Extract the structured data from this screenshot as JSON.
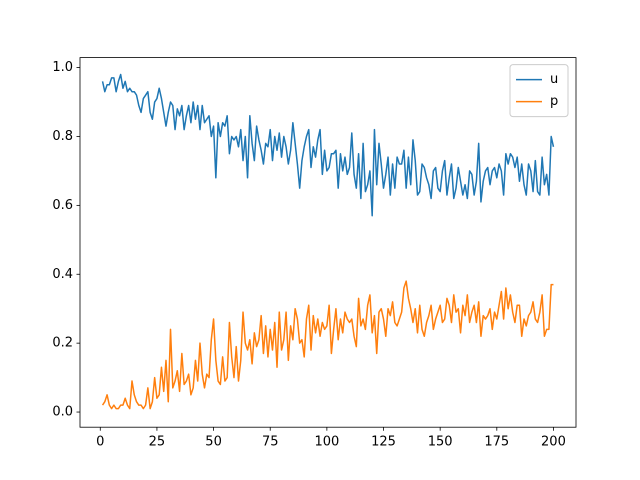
{
  "chart_data": {
    "type": "line",
    "x": [
      1,
      2,
      3,
      4,
      5,
      6,
      7,
      8,
      9,
      10,
      11,
      12,
      13,
      14,
      15,
      16,
      17,
      18,
      19,
      20,
      21,
      22,
      23,
      24,
      25,
      26,
      27,
      28,
      29,
      30,
      31,
      32,
      33,
      34,
      35,
      36,
      37,
      38,
      39,
      40,
      41,
      42,
      43,
      44,
      45,
      46,
      47,
      48,
      49,
      50,
      51,
      52,
      53,
      54,
      55,
      56,
      57,
      58,
      59,
      60,
      61,
      62,
      63,
      64,
      65,
      66,
      67,
      68,
      69,
      70,
      71,
      72,
      73,
      74,
      75,
      76,
      77,
      78,
      79,
      80,
      81,
      82,
      83,
      84,
      85,
      86,
      87,
      88,
      89,
      90,
      91,
      92,
      93,
      94,
      95,
      96,
      97,
      98,
      99,
      100,
      101,
      102,
      103,
      104,
      105,
      106,
      107,
      108,
      109,
      110,
      111,
      112,
      113,
      114,
      115,
      116,
      117,
      118,
      119,
      120,
      121,
      122,
      123,
      124,
      125,
      126,
      127,
      128,
      129,
      130,
      131,
      132,
      133,
      134,
      135,
      136,
      137,
      138,
      139,
      140,
      141,
      142,
      143,
      144,
      145,
      146,
      147,
      148,
      149,
      150,
      151,
      152,
      153,
      154,
      155,
      156,
      157,
      158,
      159,
      160,
      161,
      162,
      163,
      164,
      165,
      166,
      167,
      168,
      169,
      170,
      171,
      172,
      173,
      174,
      175,
      176,
      177,
      178,
      179,
      180,
      181,
      182,
      183,
      184,
      185,
      186,
      187,
      188,
      189,
      190,
      191,
      192,
      193,
      194,
      195,
      196,
      197,
      198,
      199,
      200
    ],
    "series": [
      {
        "name": "u",
        "color": "#1f77b4",
        "values": [
          0.96,
          0.93,
          0.95,
          0.95,
          0.97,
          0.97,
          0.93,
          0.96,
          0.98,
          0.94,
          0.96,
          0.93,
          0.94,
          0.93,
          0.93,
          0.92,
          0.89,
          0.87,
          0.91,
          0.92,
          0.93,
          0.87,
          0.85,
          0.9,
          0.91,
          0.94,
          0.91,
          0.87,
          0.83,
          0.87,
          0.9,
          0.89,
          0.82,
          0.88,
          0.86,
          0.89,
          0.82,
          0.86,
          0.89,
          0.84,
          0.9,
          0.85,
          0.89,
          0.82,
          0.89,
          0.84,
          0.85,
          0.86,
          0.8,
          0.83,
          0.68,
          0.84,
          0.8,
          0.84,
          0.83,
          0.86,
          0.75,
          0.8,
          0.79,
          0.8,
          0.77,
          0.82,
          0.73,
          0.8,
          0.68,
          0.86,
          0.78,
          0.73,
          0.83,
          0.79,
          0.76,
          0.72,
          0.78,
          0.77,
          0.82,
          0.73,
          0.8,
          0.76,
          0.81,
          0.74,
          0.8,
          0.77,
          0.72,
          0.76,
          0.84,
          0.78,
          0.72,
          0.65,
          0.73,
          0.77,
          0.8,
          0.82,
          0.71,
          0.77,
          0.74,
          0.79,
          0.82,
          0.69,
          0.76,
          0.7,
          0.71,
          0.75,
          0.75,
          0.76,
          0.65,
          0.75,
          0.7,
          0.74,
          0.69,
          0.71,
          0.81,
          0.69,
          0.65,
          0.75,
          0.62,
          0.78,
          0.64,
          0.66,
          0.7,
          0.57,
          0.82,
          0.66,
          0.78,
          0.72,
          0.65,
          0.69,
          0.74,
          0.63,
          0.72,
          0.65,
          0.74,
          0.72,
          0.72,
          0.76,
          0.65,
          0.74,
          0.66,
          0.79,
          0.73,
          0.63,
          0.64,
          0.72,
          0.71,
          0.68,
          0.66,
          0.62,
          0.7,
          0.71,
          0.65,
          0.64,
          0.7,
          0.73,
          0.63,
          0.68,
          0.72,
          0.62,
          0.65,
          0.71,
          0.67,
          0.63,
          0.66,
          0.62,
          0.7,
          0.69,
          0.63,
          0.67,
          0.78,
          0.61,
          0.67,
          0.7,
          0.71,
          0.66,
          0.7,
          0.71,
          0.68,
          0.72,
          0.7,
          0.63,
          0.75,
          0.72,
          0.75,
          0.74,
          0.71,
          0.74,
          0.67,
          0.72,
          0.66,
          0.63,
          0.72,
          0.7,
          0.64,
          0.73,
          0.64,
          0.63,
          0.74,
          0.66,
          0.69,
          0.63,
          0.8,
          0.77
        ]
      },
      {
        "name": "p",
        "color": "#ff7f0e",
        "values": [
          0.02,
          0.03,
          0.05,
          0.02,
          0.01,
          0.02,
          0.01,
          0.01,
          0.02,
          0.02,
          0.04,
          0.02,
          0.01,
          0.09,
          0.05,
          0.03,
          0.02,
          0.02,
          0.01,
          0.02,
          0.07,
          0.01,
          0.03,
          0.1,
          0.04,
          0.05,
          0.13,
          0.06,
          0.15,
          0.03,
          0.24,
          0.07,
          0.09,
          0.12,
          0.06,
          0.17,
          0.08,
          0.09,
          0.11,
          0.05,
          0.07,
          0.15,
          0.09,
          0.2,
          0.11,
          0.07,
          0.11,
          0.1,
          0.21,
          0.27,
          0.15,
          0.09,
          0.08,
          0.16,
          0.09,
          0.1,
          0.26,
          0.16,
          0.1,
          0.19,
          0.09,
          0.15,
          0.29,
          0.2,
          0.18,
          0.21,
          0.14,
          0.23,
          0.19,
          0.21,
          0.28,
          0.17,
          0.25,
          0.16,
          0.24,
          0.18,
          0.26,
          0.13,
          0.29,
          0.18,
          0.21,
          0.29,
          0.15,
          0.25,
          0.21,
          0.3,
          0.27,
          0.2,
          0.21,
          0.16,
          0.27,
          0.31,
          0.18,
          0.28,
          0.23,
          0.27,
          0.22,
          0.26,
          0.24,
          0.25,
          0.31,
          0.17,
          0.24,
          0.3,
          0.21,
          0.27,
          0.23,
          0.29,
          0.27,
          0.26,
          0.27,
          0.22,
          0.19,
          0.33,
          0.25,
          0.27,
          0.24,
          0.31,
          0.34,
          0.23,
          0.28,
          0.17,
          0.29,
          0.3,
          0.27,
          0.22,
          0.3,
          0.28,
          0.32,
          0.26,
          0.25,
          0.27,
          0.29,
          0.36,
          0.38,
          0.33,
          0.3,
          0.26,
          0.3,
          0.23,
          0.31,
          0.24,
          0.22,
          0.26,
          0.28,
          0.31,
          0.24,
          0.27,
          0.29,
          0.31,
          0.26,
          0.27,
          0.33,
          0.31,
          0.26,
          0.34,
          0.29,
          0.3,
          0.23,
          0.31,
          0.28,
          0.34,
          0.26,
          0.29,
          0.31,
          0.26,
          0.32,
          0.22,
          0.28,
          0.27,
          0.28,
          0.3,
          0.24,
          0.29,
          0.27,
          0.31,
          0.35,
          0.27,
          0.36,
          0.3,
          0.34,
          0.29,
          0.26,
          0.31,
          0.31,
          0.22,
          0.27,
          0.25,
          0.28,
          0.29,
          0.32,
          0.27,
          0.26,
          0.29,
          0.34,
          0.22,
          0.24,
          0.24,
          0.37,
          0.37
        ]
      }
    ],
    "xlim": [
      -8.95,
      209.95
    ],
    "xticks": [
      0,
      25,
      50,
      75,
      100,
      125,
      150,
      175,
      200
    ],
    "ylim": [
      -0.044,
      1.029
    ],
    "yticks": [
      {
        "value": 0,
        "label": "0.0"
      },
      {
        "value": 0.2,
        "label": "0.2"
      },
      {
        "value": 0.4,
        "label": "0.4"
      },
      {
        "value": 0.6,
        "label": "0.6"
      },
      {
        "value": 0.8,
        "label": "0.8"
      },
      {
        "value": 1.0,
        "label": "1.0"
      }
    ],
    "legend": "upper right"
  }
}
